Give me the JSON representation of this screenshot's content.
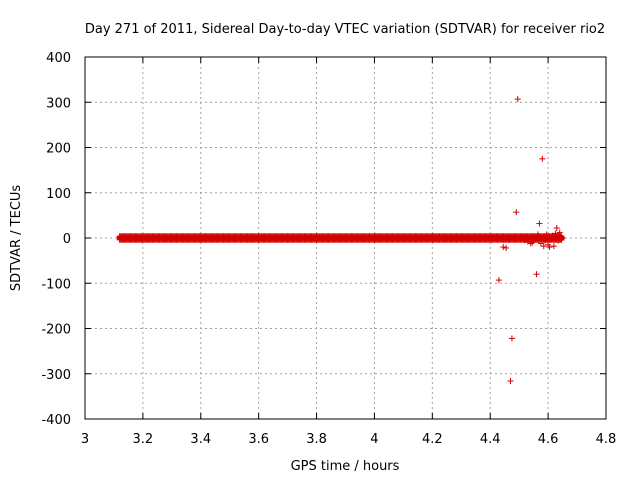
{
  "chart_data": {
    "type": "scatter",
    "title": "Day 271 of 2011, Sidereal Day-to-day VTEC variation (SDTVAR) for receiver rio2",
    "xlabel": "GPS time / hours",
    "ylabel": "SDTVAR / TECUs",
    "xlim": [
      3,
      4.8
    ],
    "ylim": [
      -400,
      400
    ],
    "xticks": [
      "3",
      "3.2",
      "3.4",
      "3.6",
      "3.8",
      "4",
      "4.2",
      "4.4",
      "4.6",
      "4.8"
    ],
    "yticks": [
      "400",
      "300",
      "200",
      "100",
      "0",
      "-100",
      "-200",
      "-300",
      "-400"
    ],
    "grid": true,
    "marker": "+",
    "color": "#d40000",
    "dense_band": {
      "x_start": 3.12,
      "x_end": 4.65,
      "x_step": 0.00417,
      "y_values": [
        -4,
        -2,
        0,
        2,
        4
      ]
    },
    "series": [
      {
        "name": "SDTVAR",
        "x": [
          4.43,
          4.445,
          4.455,
          4.47,
          4.475,
          4.49,
          4.495,
          4.51,
          4.52,
          4.53,
          4.54,
          4.545,
          4.55,
          4.56,
          4.565,
          4.57,
          4.575,
          4.58,
          4.585,
          4.59,
          4.595,
          4.6,
          4.605,
          4.61,
          4.615,
          4.62,
          4.625,
          4.63,
          4.635,
          4.64,
          4.645,
          4.65
        ],
        "y": [
          -93,
          -20,
          -22,
          -316,
          -222,
          57,
          307,
          2,
          -5,
          -8,
          -12,
          -10,
          -6,
          -80,
          8,
          32,
          -12,
          175,
          -18,
          -5,
          8,
          -15,
          -20,
          -3,
          5,
          -18,
          10,
          22,
          -6,
          12,
          2,
          0
        ]
      }
    ]
  }
}
